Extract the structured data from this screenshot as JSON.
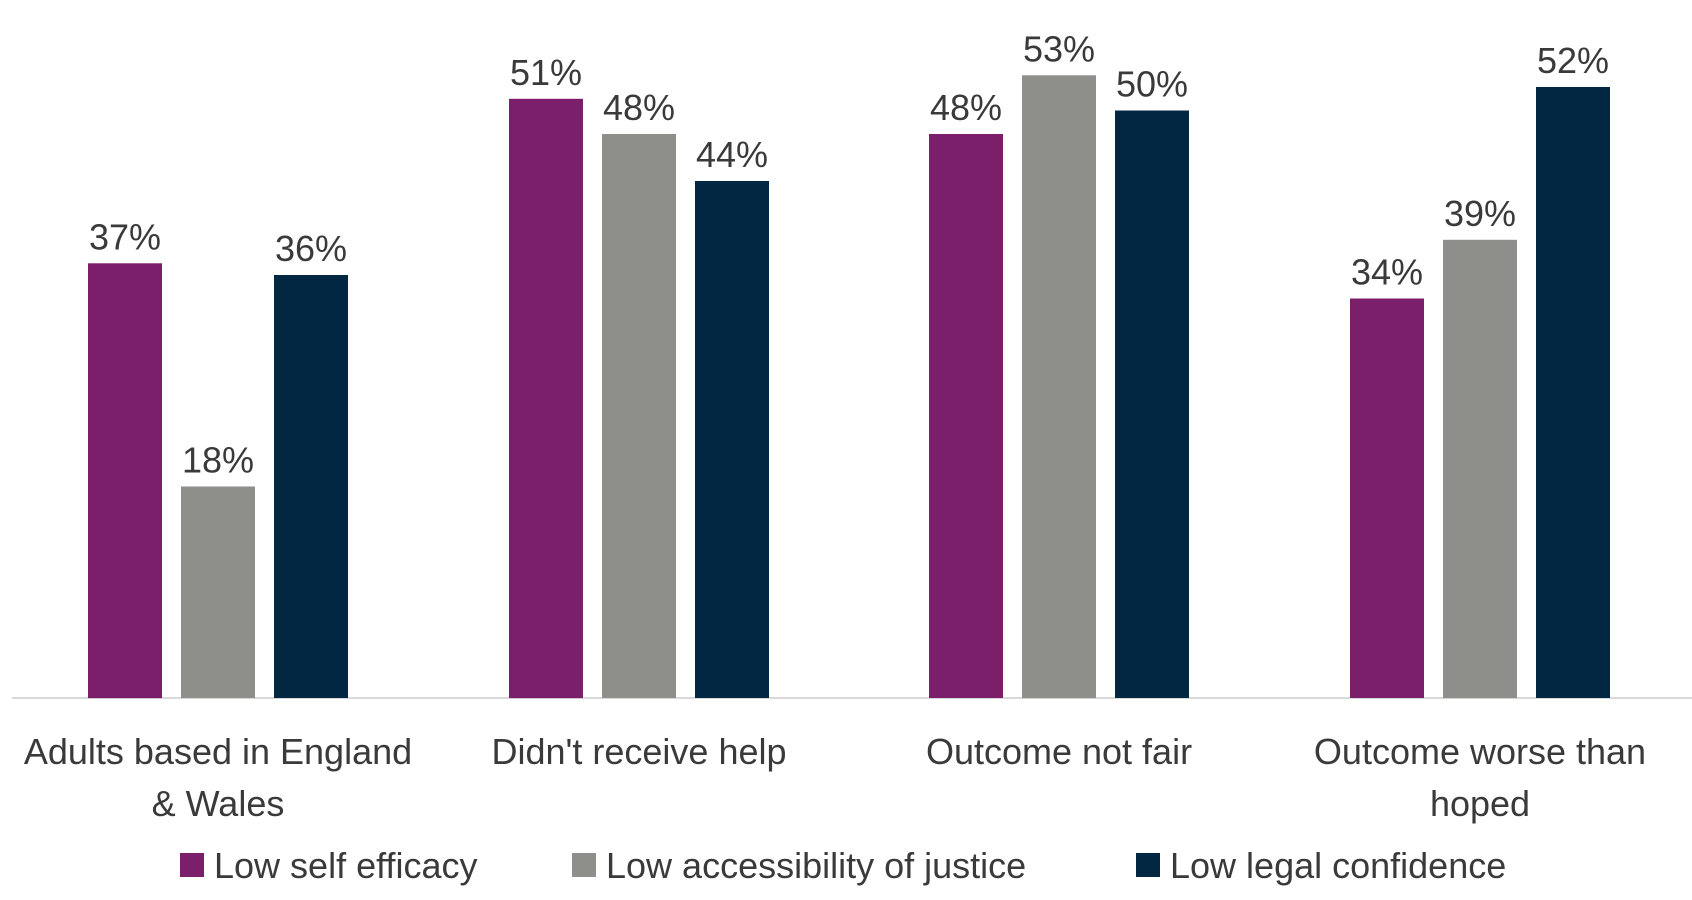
{
  "chart_data": {
    "type": "bar",
    "categories": [
      [
        "Adults based in England",
        "& Wales"
      ],
      [
        "Didn't receive help"
      ],
      [
        "Outcome not fair"
      ],
      [
        "Outcome worse than",
        "hoped"
      ]
    ],
    "series": [
      {
        "name": "Low self efficacy",
        "color": "#7b1f6b",
        "values": [
          37,
          51,
          48,
          34
        ],
        "labels": [
          "37%",
          "51%",
          "48%",
          "34%"
        ]
      },
      {
        "name": "Low accessibility of justice",
        "color": "#8e8f8a",
        "values": [
          18,
          48,
          53,
          39
        ],
        "labels": [
          "18%",
          "48%",
          "53%",
          "39%"
        ]
      },
      {
        "name": "Low legal confidence",
        "color": "#022743",
        "values": [
          36,
          44,
          50,
          52
        ],
        "labels": [
          "36%",
          "44%",
          "50%",
          "52%"
        ]
      }
    ],
    "ylim": [
      0,
      56
    ],
    "grid": false,
    "legend_position": "bottom",
    "title": "",
    "xlabel": "",
    "ylabel": ""
  }
}
